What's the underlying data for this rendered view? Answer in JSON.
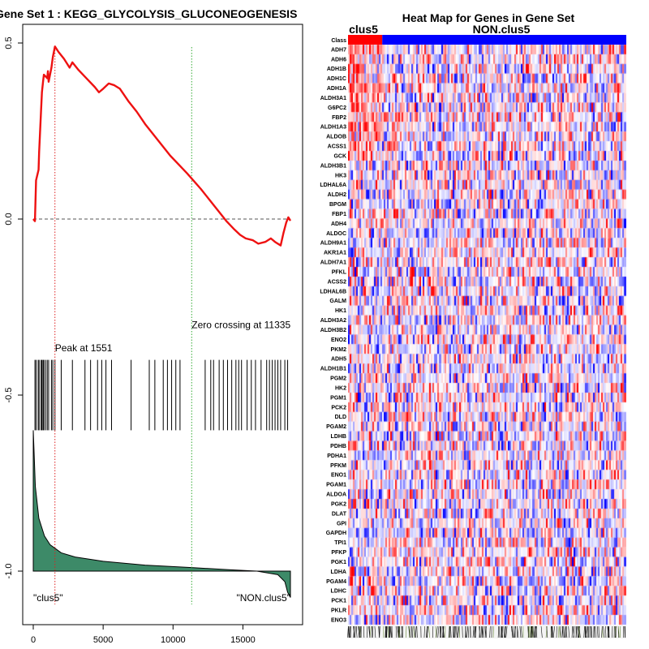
{
  "chart_data": [
    {
      "type": "line",
      "title": "Gene Set  1 : KEGG_GLYCOLYSIS_GLUCONEOGENESIS",
      "xlabel": "",
      "ylabel": "",
      "xlim": [
        -1000,
        19000
      ],
      "ylim": [
        -1.15,
        0.52
      ],
      "x_ticks": [
        0,
        5000,
        10000,
        15000
      ],
      "x_tick_labels": [
        "0",
        "5000",
        "10000",
        "15000"
      ],
      "y_ticks": [
        0.5,
        0.0,
        -0.5,
        -1.0
      ],
      "y_tick_labels": [
        "0.5",
        "0.0",
        "-0.5",
        "-1.0"
      ],
      "series": [
        {
          "color": "#ee1111",
          "points": [
            [
              0,
              0
            ],
            [
              120,
              -0.006
            ],
            [
              200,
              0.11
            ],
            [
              380,
              0.14
            ],
            [
              420,
              0.19
            ],
            [
              560,
              0.31
            ],
            [
              620,
              0.36
            ],
            [
              700,
              0.39
            ],
            [
              760,
              0.41
            ],
            [
              880,
              0.405
            ],
            [
              1000,
              0.4
            ],
            [
              1050,
              0.42
            ],
            [
              1100,
              0.39
            ],
            [
              1300,
              0.43
            ],
            [
              1400,
              0.46
            ],
            [
              1551,
              0.49
            ],
            [
              1800,
              0.475
            ],
            [
              2200,
              0.455
            ],
            [
              2600,
              0.43
            ],
            [
              2800,
              0.445
            ],
            [
              3200,
              0.425
            ],
            [
              3800,
              0.4
            ],
            [
              4400,
              0.375
            ],
            [
              4700,
              0.36
            ],
            [
              5000,
              0.37
            ],
            [
              5400,
              0.385
            ],
            [
              5800,
              0.38
            ],
            [
              6200,
              0.37
            ],
            [
              6800,
              0.335
            ],
            [
              7400,
              0.305
            ],
            [
              8000,
              0.27
            ],
            [
              8600,
              0.24
            ],
            [
              9200,
              0.21
            ],
            [
              9800,
              0.18
            ],
            [
              10400,
              0.155
            ],
            [
              11000,
              0.13
            ],
            [
              11335,
              0.115
            ],
            [
              12000,
              0.085
            ],
            [
              12600,
              0.055
            ],
            [
              13200,
              0.025
            ],
            [
              13800,
              -0.005
            ],
            [
              14400,
              -0.03
            ],
            [
              14800,
              -0.045
            ],
            [
              15200,
              -0.055
            ],
            [
              15700,
              -0.06
            ],
            [
              16100,
              -0.07
            ],
            [
              16600,
              -0.065
            ],
            [
              17000,
              -0.055
            ],
            [
              17300,
              -0.065
            ],
            [
              17700,
              -0.075
            ],
            [
              17900,
              -0.04
            ],
            [
              18100,
              -0.01
            ],
            [
              18250,
              0.005
            ],
            [
              18400,
              -0.005
            ]
          ]
        }
      ],
      "reference_lines": [
        {
          "orientation": "horizontal",
          "value": 0.0,
          "style": "dashed",
          "color": "#555555"
        },
        {
          "orientation": "vertical",
          "value": 1551,
          "style": "dotted",
          "color": "#dd2222"
        },
        {
          "orientation": "vertical",
          "value": 11335,
          "style": "dotted",
          "color": "#33aa33"
        }
      ],
      "annotations": [
        {
          "text": "Peak at 1551",
          "x": 1551,
          "y": -0.375
        },
        {
          "text": "Zero crossing at 11335",
          "x": 11335,
          "y": -0.31
        },
        {
          "text": "\"clus5\"",
          "x": 0,
          "y": -1.085
        },
        {
          "text": "\"NON.clus5\"",
          "x": 18400,
          "y": -1.085
        }
      ],
      "hit_positions": [
        120,
        200,
        350,
        420,
        560,
        620,
        700,
        760,
        880,
        1000,
        1100,
        1300,
        1400,
        1551,
        2000,
        2800,
        3700,
        4100,
        4600,
        4900,
        5200,
        5600,
        7000,
        8300,
        8700,
        9300,
        9600,
        9900,
        10200,
        10500,
        12300,
        12700,
        12900,
        13300,
        13600,
        13900,
        14200,
        14500,
        14700,
        14900,
        15300,
        15600,
        15900,
        16300,
        16700,
        16900,
        17100,
        17300,
        17500,
        17700,
        18000,
        18200
      ],
      "hit_ylim": [
        -0.6,
        -0.4
      ],
      "metric_area": {
        "color": "#3d8a68",
        "points": [
          [
            0,
            -0.6
          ],
          [
            150,
            -0.76
          ],
          [
            400,
            -0.85
          ],
          [
            800,
            -0.9
          ],
          [
            1200,
            -0.925
          ],
          [
            2000,
            -0.948
          ],
          [
            3000,
            -0.96
          ],
          [
            5000,
            -0.972
          ],
          [
            8000,
            -0.983
          ],
          [
            11335,
            -0.99
          ],
          [
            14000,
            -0.996
          ],
          [
            16000,
            -1.0
          ],
          [
            17500,
            -1.01
          ],
          [
            18000,
            -1.03
          ],
          [
            18200,
            -1.06
          ],
          [
            18400,
            -1.075
          ]
        ],
        "baseline": -1.0
      }
    },
    {
      "type": "heatmap",
      "title": "Heat Map for Genes in Gene Set",
      "class_labels": [
        "clus5",
        "NON.clus5"
      ],
      "class_split_fraction": 0.123,
      "class_colors": [
        "#ff0000",
        "#0000ff"
      ],
      "row_header": "Class",
      "genes": [
        "ADH7",
        "ADH6",
        "ADH1B",
        "ADH1C",
        "ADH1A",
        "ALDH3A1",
        "G6PC2",
        "FBP2",
        "ALDH1A3",
        "ALDOB",
        "ACSS1",
        "GCK",
        "ALDH3B1",
        "HK3",
        "LDHAL6A",
        "ALDH2",
        "BPGM",
        "FBP1",
        "ADH4",
        "ALDOC",
        "ALDH9A1",
        "AKR1A1",
        "ALDH7A1",
        "PFKL",
        "ACSS2",
        "LDHAL6B",
        "GALM",
        "HK1",
        "ALDH3A2",
        "ALDH3B2",
        "ENO2",
        "PKM2",
        "ADH5",
        "ALDH1B1",
        "PGM2",
        "HK2",
        "PGM1",
        "PCK2",
        "DLD",
        "PGAM2",
        "LDHB",
        "PDHB",
        "PDHA1",
        "PFKM",
        "ENO1",
        "PGAM1",
        "ALDOA",
        "PGK2",
        "DLAT",
        "GPI",
        "GAPDH",
        "TPI1",
        "PFKP",
        "PGK1",
        "LDHA",
        "PGAM4",
        "LDHC",
        "PCK1",
        "PKLR",
        "ENO3"
      ],
      "color_scale": [
        "#0000ff",
        "#ffffff",
        "#ff0000"
      ]
    }
  ]
}
